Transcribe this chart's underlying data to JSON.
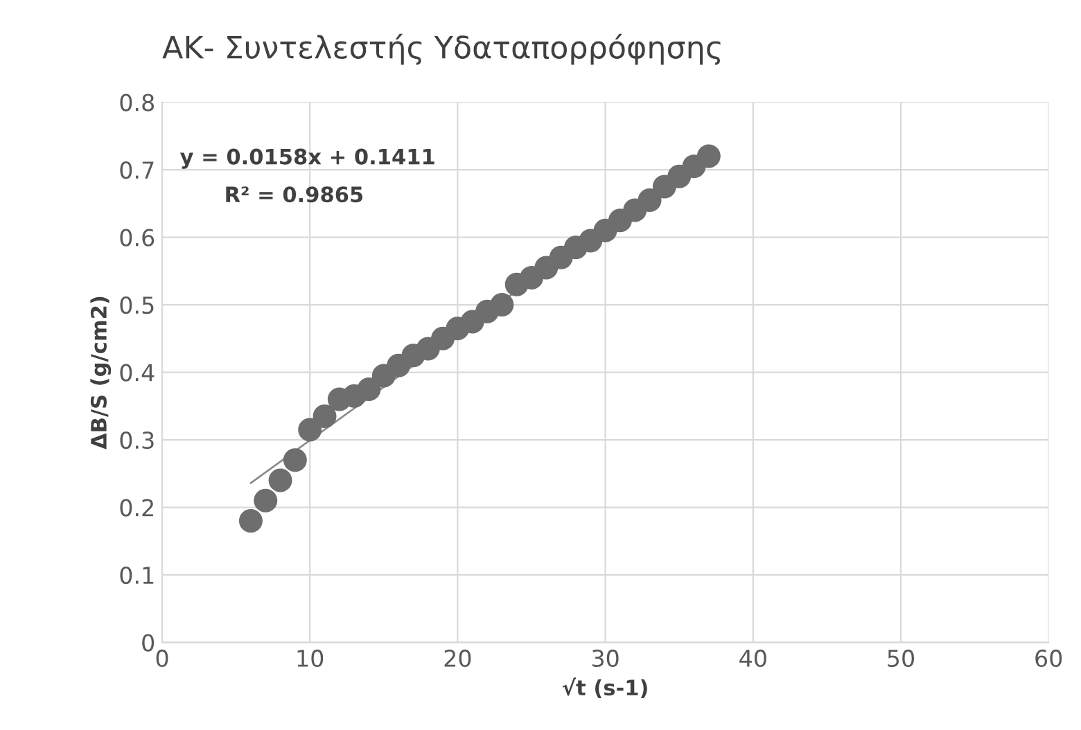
{
  "chart_data": {
    "type": "scatter",
    "title": "ΑΚ- Συντελεστής Υδαταπορρόφησης",
    "xlabel": "√t (s-1)",
    "ylabel": "ΔB/S (g/cm2)",
    "annotations": [
      "y = 0.0158x + 0.1411",
      "R² = 0.9865"
    ],
    "series": [
      {
        "color": "#6e6e6e",
        "marker": "circle",
        "x": [
          6,
          7,
          8,
          9,
          10,
          11,
          12,
          13,
          14,
          15,
          16,
          17,
          18,
          19,
          20,
          21,
          22,
          23,
          24,
          25,
          26,
          27,
          28,
          29,
          30,
          31,
          32,
          33,
          34,
          35,
          36,
          37
        ],
        "values": [
          0.18,
          0.21,
          0.24,
          0.27,
          0.315,
          0.335,
          0.36,
          0.365,
          0.375,
          0.395,
          0.41,
          0.425,
          0.435,
          0.45,
          0.465,
          0.475,
          0.49,
          0.5,
          0.53,
          0.54,
          0.555,
          0.57,
          0.585,
          0.595,
          0.61,
          0.625,
          0.64,
          0.655,
          0.675,
          0.69,
          0.705,
          0.72
        ]
      },
      {
        "type": "line",
        "color": "#8c8c8c",
        "x": [
          6,
          37
        ],
        "values": [
          0.236,
          0.726
        ]
      }
    ],
    "xlim": [
      0,
      60
    ],
    "xticks": [
      0,
      10,
      20,
      30,
      40,
      50,
      60
    ],
    "ylim": [
      0,
      0.8
    ],
    "yticks": [
      0,
      0.1,
      0.2,
      0.3,
      0.4,
      0.5,
      0.6,
      0.7,
      0.8
    ],
    "grid": true,
    "legend": false
  }
}
